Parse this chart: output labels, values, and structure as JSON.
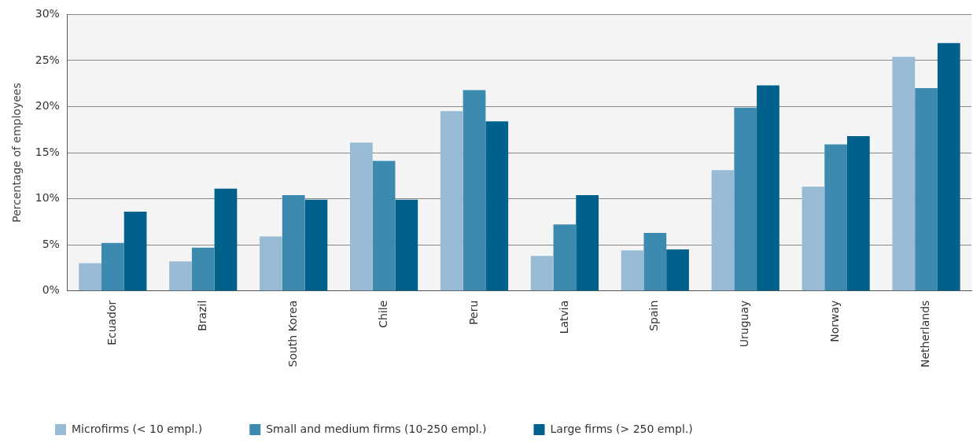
{
  "chart_data": {
    "type": "bar",
    "ylabel": "Percentage of employees",
    "categories": [
      "Ecuador",
      "Brazil",
      "South Korea",
      "Chile",
      "Peru",
      "Latvia",
      "Spain",
      "Uruguay",
      "Norway",
      "Netherlands"
    ],
    "series": [
      {
        "name": "Microfirms (< 10 empl.)",
        "color": "#97bbd4",
        "values": [
          3.0,
          3.2,
          5.9,
          16.1,
          19.5,
          3.8,
          4.4,
          13.1,
          11.3,
          25.4
        ]
      },
      {
        "name": "Small and medium firms (10-250 empl.)",
        "color": "#3d8ab0",
        "values": [
          5.2,
          4.7,
          10.4,
          14.1,
          21.8,
          7.2,
          6.3,
          19.9,
          15.9,
          22.0
        ]
      },
      {
        "name": "Large firms (> 250 empl.)",
        "color": "#00628c",
        "values": [
          8.6,
          11.1,
          9.9,
          9.9,
          18.4,
          10.4,
          4.5,
          22.3,
          16.8,
          26.9
        ]
      }
    ],
    "ylim": [
      0,
      30
    ],
    "yticks": [
      {
        "value": 0,
        "label": "0%"
      },
      {
        "value": 5,
        "label": "5%"
      },
      {
        "value": 10,
        "label": "10%"
      },
      {
        "value": 15,
        "label": "15%"
      },
      {
        "value": 20,
        "label": "20%"
      },
      {
        "value": 25,
        "label": "25%"
      },
      {
        "value": 30,
        "label": "30%"
      }
    ],
    "grid": "y",
    "legend": "bottom left"
  }
}
